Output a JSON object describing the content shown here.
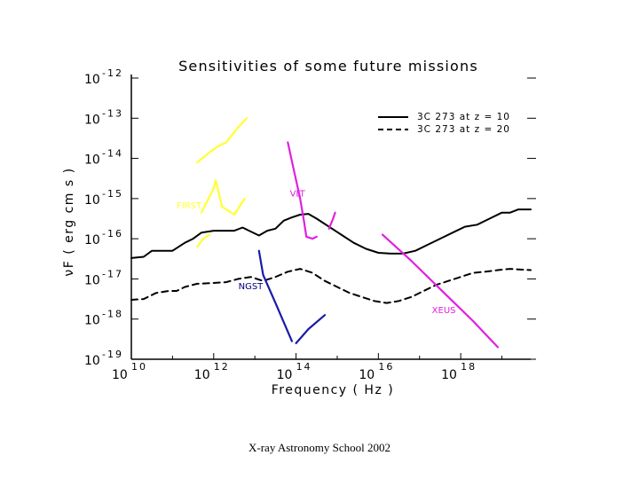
{
  "footer": "X-ray Astronomy School 2002",
  "chart_data": {
    "type": "line",
    "title": "Sensitivities of some future missions",
    "xlabel": "Frequency ( Hz )",
    "ylabel": "νF  ( erg cm  s  )",
    "x_scale": "log",
    "y_scale": "log",
    "xlim_log10": [
      10,
      19.7
    ],
    "ylim_log10": [
      -19,
      -12
    ],
    "x_ticks": [
      {
        "base": "10",
        "exp": "10",
        "value": 10
      },
      {
        "base": "10",
        "exp": "12",
        "value": 12
      },
      {
        "base": "10",
        "exp": "14",
        "value": 14
      },
      {
        "base": "10",
        "exp": "16",
        "value": 16
      },
      {
        "base": "10",
        "exp": "18",
        "value": 18
      }
    ],
    "y_ticks": [
      {
        "base": "10",
        "exp": "-12",
        "value": -12
      },
      {
        "base": "10",
        "exp": "-13",
        "value": -13
      },
      {
        "base": "10",
        "exp": "-14",
        "value": -14
      },
      {
        "base": "10",
        "exp": "-15",
        "value": -15
      },
      {
        "base": "10",
        "exp": "-16",
        "value": -16
      },
      {
        "base": "10",
        "exp": "-17",
        "value": -17
      },
      {
        "base": "10",
        "exp": "-18",
        "value": -18
      },
      {
        "base": "10",
        "exp": "-19",
        "value": -19
      }
    ],
    "legend": {
      "placement": "top-right",
      "entries": [
        {
          "label": "3C 273 at z = 10",
          "style": "solid"
        },
        {
          "label": "3C 273 at z = 20",
          "style": "dashed"
        }
      ]
    },
    "series": [
      {
        "name": "3C 273 at z = 10",
        "style": "solid",
        "color": "#000000",
        "points": [
          [
            10.0,
            -16.48
          ],
          [
            10.3,
            -16.45
          ],
          [
            10.5,
            -16.3
          ],
          [
            10.8,
            -16.3
          ],
          [
            11.0,
            -16.3
          ],
          [
            11.3,
            -16.1
          ],
          [
            11.5,
            -16.0
          ],
          [
            11.7,
            -15.85
          ],
          [
            12.0,
            -15.8
          ],
          [
            12.3,
            -15.8
          ],
          [
            12.5,
            -15.8
          ],
          [
            12.7,
            -15.72
          ],
          [
            12.9,
            -15.82
          ],
          [
            13.1,
            -15.92
          ],
          [
            13.3,
            -15.8
          ],
          [
            13.5,
            -15.75
          ],
          [
            13.7,
            -15.55
          ],
          [
            13.9,
            -15.47
          ],
          [
            14.1,
            -15.4
          ],
          [
            14.3,
            -15.38
          ],
          [
            14.5,
            -15.5
          ],
          [
            14.8,
            -15.7
          ],
          [
            15.1,
            -15.9
          ],
          [
            15.4,
            -16.1
          ],
          [
            15.7,
            -16.25
          ],
          [
            16.0,
            -16.35
          ],
          [
            16.3,
            -16.37
          ],
          [
            16.6,
            -16.37
          ],
          [
            16.9,
            -16.3
          ],
          [
            17.2,
            -16.15
          ],
          [
            17.5,
            -16.0
          ],
          [
            17.8,
            -15.85
          ],
          [
            18.1,
            -15.7
          ],
          [
            18.4,
            -15.65
          ],
          [
            18.7,
            -15.5
          ],
          [
            19.0,
            -15.35
          ],
          [
            19.2,
            -15.35
          ],
          [
            19.4,
            -15.27
          ],
          [
            19.7,
            -15.27
          ]
        ]
      },
      {
        "name": "3C 273 at z = 20",
        "style": "dashed",
        "color": "#000000",
        "points": [
          [
            10.0,
            -17.52
          ],
          [
            10.3,
            -17.5
          ],
          [
            10.6,
            -17.35
          ],
          [
            10.9,
            -17.3
          ],
          [
            11.1,
            -17.3
          ],
          [
            11.3,
            -17.2
          ],
          [
            11.6,
            -17.12
          ],
          [
            12.0,
            -17.1
          ],
          [
            12.3,
            -17.08
          ],
          [
            12.6,
            -17.0
          ],
          [
            12.9,
            -16.95
          ],
          [
            13.2,
            -17.05
          ],
          [
            13.5,
            -16.95
          ],
          [
            13.8,
            -16.82
          ],
          [
            14.1,
            -16.75
          ],
          [
            14.4,
            -16.85
          ],
          [
            14.7,
            -17.05
          ],
          [
            15.0,
            -17.2
          ],
          [
            15.3,
            -17.35
          ],
          [
            15.6,
            -17.45
          ],
          [
            15.9,
            -17.55
          ],
          [
            16.2,
            -17.6
          ],
          [
            16.5,
            -17.55
          ],
          [
            16.8,
            -17.45
          ],
          [
            17.1,
            -17.3
          ],
          [
            17.4,
            -17.15
          ],
          [
            17.7,
            -17.05
          ],
          [
            18.0,
            -16.95
          ],
          [
            18.3,
            -16.85
          ],
          [
            18.6,
            -16.82
          ],
          [
            18.9,
            -16.78
          ],
          [
            19.2,
            -16.75
          ],
          [
            19.5,
            -16.77
          ],
          [
            19.7,
            -16.78
          ]
        ]
      },
      {
        "name": "FIRST",
        "style": "solid",
        "color": "#ffff33",
        "segments": [
          [
            [
              11.6,
              -14.1
            ],
            [
              11.9,
              -13.85
            ],
            [
              12.1,
              -13.7
            ],
            [
              12.3,
              -13.6
            ],
            [
              12.6,
              -13.22
            ],
            [
              12.8,
              -13.0
            ]
          ],
          [
            [
              11.7,
              -15.35
            ],
            [
              11.85,
              -15.05
            ],
            [
              12.0,
              -14.75
            ],
            [
              12.05,
              -14.55
            ],
            [
              12.1,
              -14.75
            ],
            [
              12.2,
              -15.2
            ],
            [
              12.5,
              -15.4
            ],
            [
              12.75,
              -15.0
            ]
          ],
          [
            [
              11.6,
              -16.2
            ],
            [
              11.75,
              -16.0
            ],
            [
              11.9,
              -15.9
            ]
          ]
        ]
      },
      {
        "name": "VLT",
        "style": "solid",
        "color": "#e020e0",
        "segments": [
          [
            [
              13.8,
              -13.6
            ],
            [
              13.95,
              -14.3
            ],
            [
              14.1,
              -15.0
            ],
            [
              14.2,
              -15.6
            ],
            [
              14.25,
              -15.95
            ],
            [
              14.4,
              -16.0
            ],
            [
              14.5,
              -15.95
            ]
          ],
          [
            [
              14.8,
              -15.75
            ],
            [
              14.9,
              -15.5
            ],
            [
              14.95,
              -15.35
            ]
          ]
        ]
      },
      {
        "name": "NGST",
        "style": "solid",
        "color": "#1a1aa8",
        "segments": [
          [
            [
              13.1,
              -16.3
            ],
            [
              13.2,
              -16.9
            ],
            [
              13.5,
              -17.6
            ],
            [
              13.9,
              -18.55
            ]
          ],
          [
            [
              14.0,
              -18.6
            ],
            [
              14.3,
              -18.25
            ],
            [
              14.7,
              -17.9
            ]
          ]
        ]
      },
      {
        "name": "XEUS",
        "style": "solid",
        "color": "#e020e0",
        "segments": [
          [
            [
              16.1,
              -15.9
            ],
            [
              16.8,
              -16.55
            ],
            [
              17.5,
              -17.25
            ],
            [
              18.3,
              -18.05
            ],
            [
              18.9,
              -18.7
            ]
          ]
        ]
      }
    ],
    "annotations": [
      {
        "text": "FIRST",
        "color": "#ffff33",
        "x": 11.1,
        "y": -15.25
      },
      {
        "text": "VLT",
        "color": "#e020e0",
        "x": 13.85,
        "y": -14.95
      },
      {
        "text": "NGST",
        "color": "#000080",
        "x": 12.6,
        "y": -17.25
      },
      {
        "text": "XEUS",
        "color": "#e020e0",
        "x": 17.3,
        "y": -17.85
      }
    ]
  }
}
